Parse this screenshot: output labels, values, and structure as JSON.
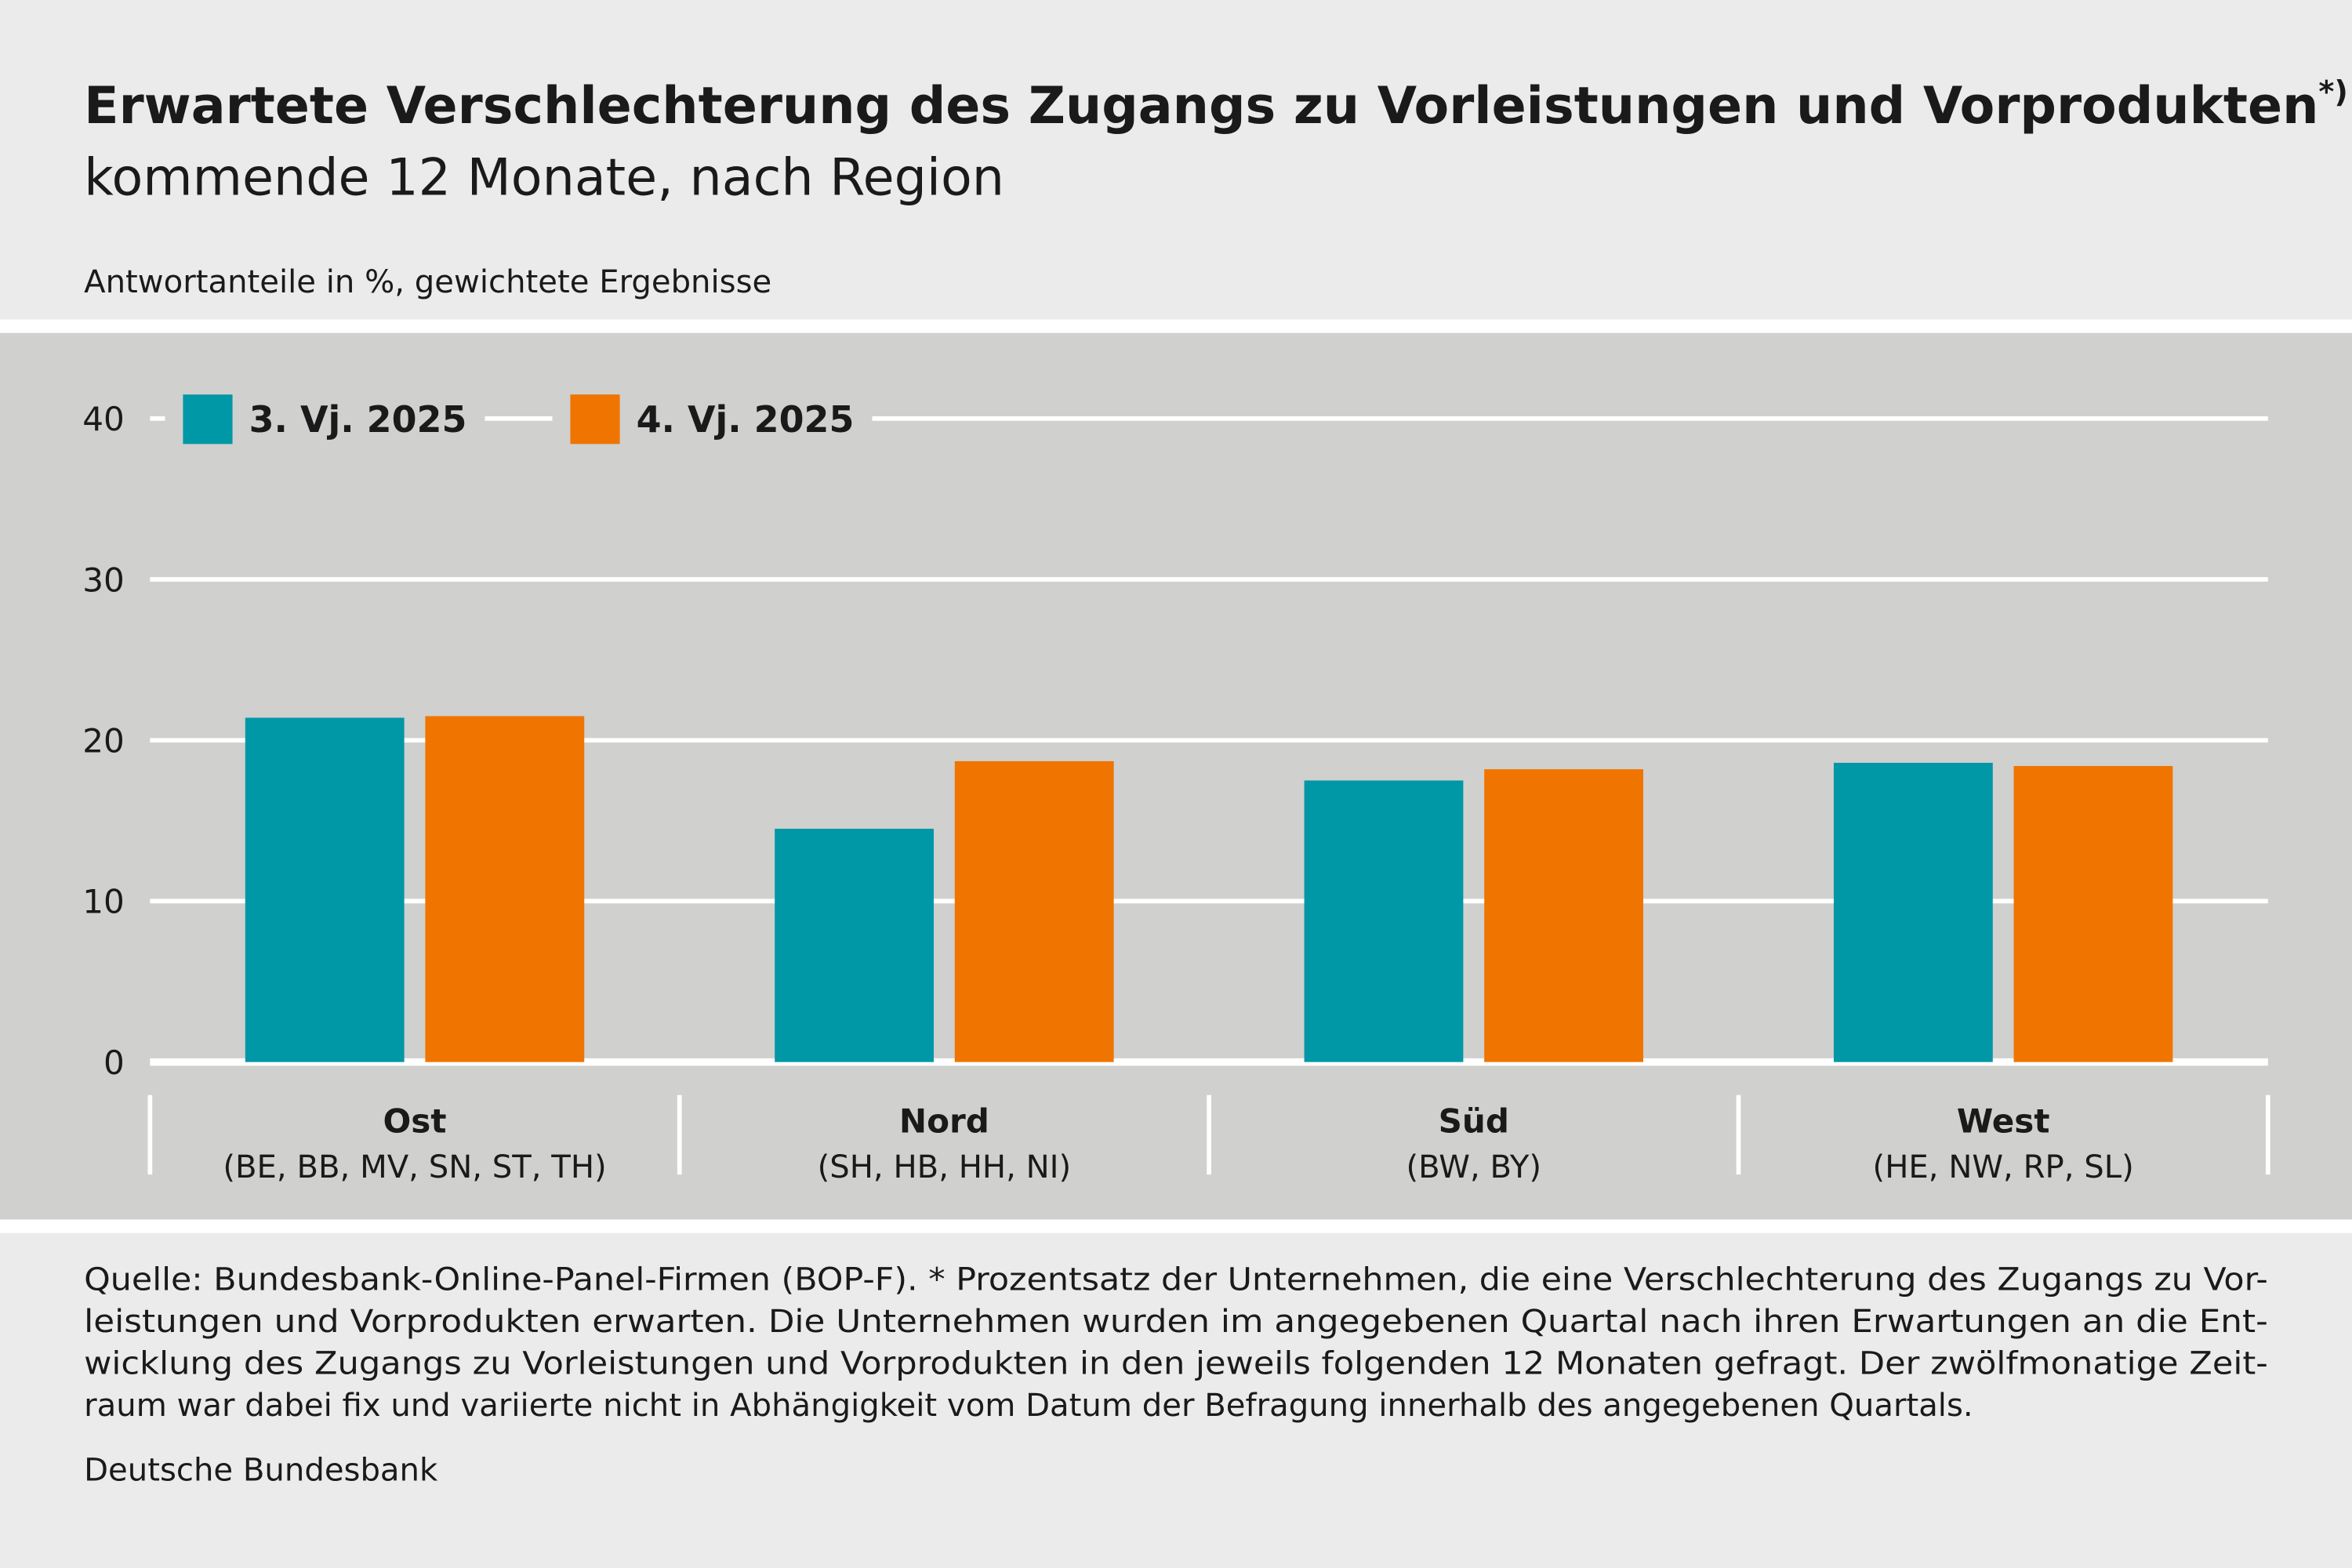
{
  "chart_data": {
    "type": "bar",
    "title": "Erwartete Verschlechterung des Zugangs zu Vorleistungen und Vorprodukten",
    "title_marker": "*)",
    "subtitle": "kommende 12 Monate, nach Region",
    "y_label": "Antwortanteile in %, gewichtete Ergebnisse",
    "categories": [
      "Ost",
      "Nord",
      "Süd",
      "West"
    ],
    "category_sublabels": [
      "(BE, BB, MV, SN, ST, TH)",
      "(SH, HB, HH, NI)",
      "(BW, BY)",
      "(HE, NW, RP, SL)"
    ],
    "series": [
      {
        "name": "3. Vj. 2025",
        "color": "#0097a7",
        "values": [
          21.4,
          14.5,
          17.5,
          18.6
        ]
      },
      {
        "name": "4. Vj. 2025",
        "color": "#ef7400",
        "values": [
          21.5,
          18.7,
          18.2,
          18.4
        ]
      }
    ],
    "ylim": [
      0,
      40
    ],
    "yticks": [
      0,
      10,
      20,
      30,
      40
    ],
    "grid": true,
    "note_lines": [
      "Quelle: Bundesbank-Online-Panel-Firmen (BOP-F). * Prozentsatz der Unternehmen, die eine Verschlechterung des Zugangs zu Vor-",
      "leistungen und Vorprodukten erwarten. Die Unternehmen wurden im angegebenen Quartal nach ihren Erwartungen an die Ent-",
      "wicklung des Zugangs zu Vorleistungen und Vorprodukten in den jeweils folgenden 12 Monaten gefragt. Der zwölfmonatige Zeit-",
      "raum war dabei fix und variierte nicht in Abhängigkeit vom Datum der Befragung innerhalb des angegebenen Quartals."
    ],
    "source": "Deutsche Bundesbank"
  }
}
